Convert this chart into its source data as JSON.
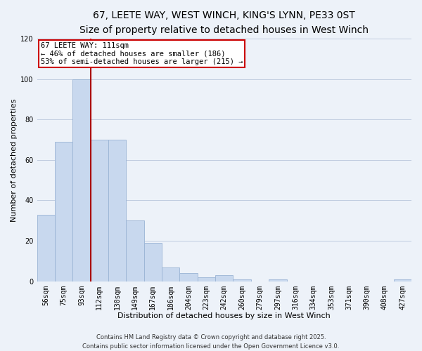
{
  "title": "67, LEETE WAY, WEST WINCH, KING'S LYNN, PE33 0ST",
  "subtitle": "Size of property relative to detached houses in West Winch",
  "xlabel": "Distribution of detached houses by size in West Winch",
  "ylabel": "Number of detached properties",
  "categories": [
    "56sqm",
    "75sqm",
    "93sqm",
    "112sqm",
    "130sqm",
    "149sqm",
    "167sqm",
    "186sqm",
    "204sqm",
    "223sqm",
    "242sqm",
    "260sqm",
    "279sqm",
    "297sqm",
    "316sqm",
    "334sqm",
    "353sqm",
    "371sqm",
    "390sqm",
    "408sqm",
    "427sqm"
  ],
  "values": [
    33,
    69,
    100,
    70,
    70,
    30,
    19,
    7,
    4,
    2,
    3,
    1,
    0,
    1,
    0,
    0,
    0,
    0,
    0,
    0,
    1
  ],
  "bar_color": "#c8d8ee",
  "bar_edge_color": "#9ab4d4",
  "highlight_index": 3,
  "highlight_line_color": "#aa0000",
  "annotation_title": "67 LEETE WAY: 111sqm",
  "annotation_line1": "← 46% of detached houses are smaller (186)",
  "annotation_line2": "53% of semi-detached houses are larger (215) →",
  "annotation_box_color": "#ffffff",
  "annotation_box_edge": "#cc0000",
  "ylim": [
    0,
    120
  ],
  "yticks": [
    0,
    20,
    40,
    60,
    80,
    100,
    120
  ],
  "footnote1": "Contains HM Land Registry data © Crown copyright and database right 2025.",
  "footnote2": "Contains public sector information licensed under the Open Government Licence v3.0.",
  "background_color": "#edf2f9",
  "plot_bg_color": "#edf2f9",
  "title_fontsize": 10,
  "subtitle_fontsize": 9,
  "xlabel_fontsize": 8,
  "ylabel_fontsize": 8,
  "tick_fontsize": 7,
  "annotation_fontsize": 7.5,
  "footnote_fontsize": 6
}
